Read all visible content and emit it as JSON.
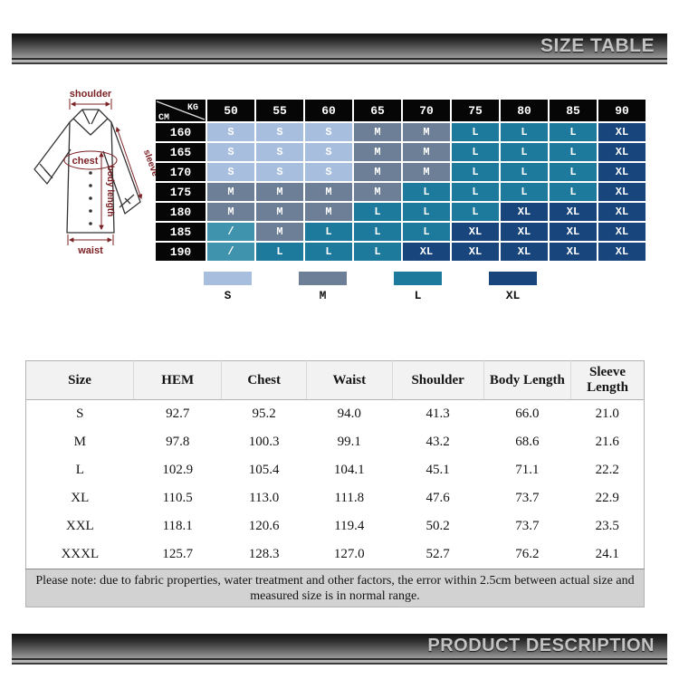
{
  "header_bar": {
    "title": "SIZE TABLE"
  },
  "footer_bar": {
    "title": "PRODUCT DESCRIPTION"
  },
  "diagram": {
    "labels": {
      "shoulder": "shoulder",
      "chest": "chest",
      "sleeve": "sleeve",
      "body_length": "body length",
      "waist": "waist"
    },
    "line_color": "#7b2024"
  },
  "size_matrix": {
    "corner": {
      "top_label": "KG",
      "bottom_label": "CM"
    },
    "weight_columns": [
      "50",
      "55",
      "60",
      "65",
      "70",
      "75",
      "80",
      "85",
      "90"
    ],
    "height_rows": [
      "160",
      "165",
      "170",
      "175",
      "180",
      "185",
      "190"
    ],
    "cells": [
      [
        "S",
        "S",
        "S",
        "M",
        "M",
        "L",
        "L",
        "L",
        "XL"
      ],
      [
        "S",
        "S",
        "S",
        "M",
        "M",
        "L",
        "L",
        "L",
        "XL"
      ],
      [
        "S",
        "S",
        "S",
        "M",
        "M",
        "L",
        "L",
        "L",
        "XL"
      ],
      [
        "M",
        "M",
        "M",
        "M",
        "L",
        "L",
        "L",
        "L",
        "XL"
      ],
      [
        "M",
        "M",
        "M",
        "L",
        "L",
        "L",
        "XL",
        "XL",
        "XL"
      ],
      [
        "/",
        "M",
        "L",
        "L",
        "L",
        "XL",
        "XL",
        "XL",
        "XL"
      ],
      [
        "/",
        "L",
        "L",
        "L",
        "XL",
        "XL",
        "XL",
        "XL",
        "XL"
      ]
    ],
    "colors": {
      "S": "#a8bede",
      "M": "#6d7f96",
      "L": "#1e7a9c",
      "XL": "#17457c",
      "/": "#3f93ad"
    }
  },
  "legend": {
    "items": [
      {
        "label": "S",
        "color": "#a8bede"
      },
      {
        "label": "M",
        "color": "#6d7f96"
      },
      {
        "label": "L",
        "color": "#1e7a9c"
      },
      {
        "label": "XL",
        "color": "#17457c"
      }
    ]
  },
  "measurement_table": {
    "columns": [
      "Size",
      "HEM",
      "Chest",
      "Waist",
      "Shoulder",
      "Body Length",
      "Sleeve Length"
    ],
    "rows": [
      [
        "S",
        "92.7",
        "95.2",
        "94.0",
        "41.3",
        "66.0",
        "21.0"
      ],
      [
        "M",
        "97.8",
        "100.3",
        "99.1",
        "43.2",
        "68.6",
        "21.6"
      ],
      [
        "L",
        "102.9",
        "105.4",
        "104.1",
        "45.1",
        "71.1",
        "22.2"
      ],
      [
        "XL",
        "110.5",
        "113.0",
        "111.8",
        "47.6",
        "73.7",
        "22.9"
      ],
      [
        "XXL",
        "118.1",
        "120.6",
        "119.4",
        "50.2",
        "73.7",
        "23.5"
      ],
      [
        "XXXL",
        "125.7",
        "128.3",
        "127.0",
        "52.7",
        "76.2",
        "24.1"
      ]
    ],
    "note": "Please note: due to fabric properties, water treatment and other factors, the error within 2.5cm between actual size and measured size is in normal range."
  }
}
